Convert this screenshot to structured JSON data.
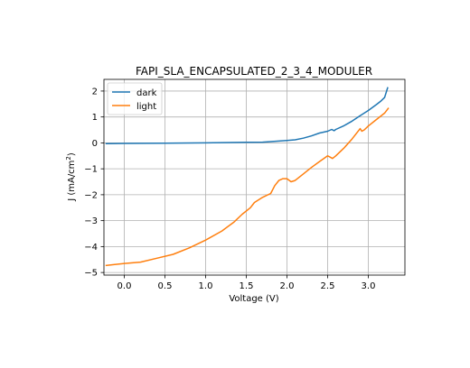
{
  "chart_data": {
    "type": "line",
    "title": "FAPI_SLA_ENCAPSULATED_2_3_4_MODULER",
    "xlabel": "Voltage (V)",
    "ylabel_main": "J (mA/cm",
    "ylabel_sup": "2",
    "ylabel_end": ")",
    "xlim": [
      -0.25,
      3.45
    ],
    "ylim": [
      -5.1,
      2.45
    ],
    "xticks": [
      0.0,
      0.5,
      1.0,
      1.5,
      2.0,
      2.5,
      3.0
    ],
    "xtick_labels": [
      "0.0",
      "0.5",
      "1.0",
      "1.5",
      "2.0",
      "2.5",
      "3.0"
    ],
    "yticks": [
      -5,
      -4,
      -3,
      -2,
      -1,
      0,
      1,
      2
    ],
    "ytick_labels": [
      "−5",
      "−4",
      "−3",
      "−2",
      "−1",
      "0",
      "1",
      "2"
    ],
    "grid": true,
    "legend_position": "top-left",
    "series": [
      {
        "name": "dark",
        "color": "#1f77b4",
        "x": [
          -0.23,
          0.0,
          0.5,
          1.0,
          1.5,
          1.7,
          1.8,
          1.9,
          2.0,
          2.1,
          2.2,
          2.3,
          2.4,
          2.5,
          2.55,
          2.58,
          2.6,
          2.7,
          2.8,
          2.9,
          3.0,
          3.1,
          3.15,
          3.2,
          3.24
        ],
        "y": [
          -0.03,
          -0.02,
          -0.01,
          0.0,
          0.02,
          0.03,
          0.05,
          0.07,
          0.09,
          0.12,
          0.18,
          0.27,
          0.38,
          0.45,
          0.52,
          0.47,
          0.52,
          0.66,
          0.84,
          1.05,
          1.25,
          1.48,
          1.6,
          1.75,
          2.15
        ]
      },
      {
        "name": "light",
        "color": "#ff7f0e",
        "x": [
          -0.23,
          0.0,
          0.2,
          0.4,
          0.6,
          0.8,
          1.0,
          1.2,
          1.35,
          1.45,
          1.55,
          1.6,
          1.7,
          1.8,
          1.85,
          1.9,
          1.95,
          2.0,
          2.05,
          2.1,
          2.2,
          2.3,
          2.4,
          2.5,
          2.52,
          2.56,
          2.6,
          2.7,
          2.8,
          2.9,
          2.92,
          2.95,
          3.0,
          3.1,
          3.2,
          3.25
        ],
        "y": [
          -4.73,
          -4.65,
          -4.6,
          -4.45,
          -4.3,
          -4.05,
          -3.75,
          -3.4,
          -3.05,
          -2.75,
          -2.5,
          -2.3,
          -2.1,
          -1.95,
          -1.65,
          -1.45,
          -1.38,
          -1.38,
          -1.5,
          -1.45,
          -1.2,
          -0.95,
          -0.72,
          -0.5,
          -0.53,
          -0.6,
          -0.5,
          -0.2,
          0.15,
          0.55,
          0.45,
          0.5,
          0.65,
          0.9,
          1.15,
          1.35
        ]
      }
    ]
  }
}
